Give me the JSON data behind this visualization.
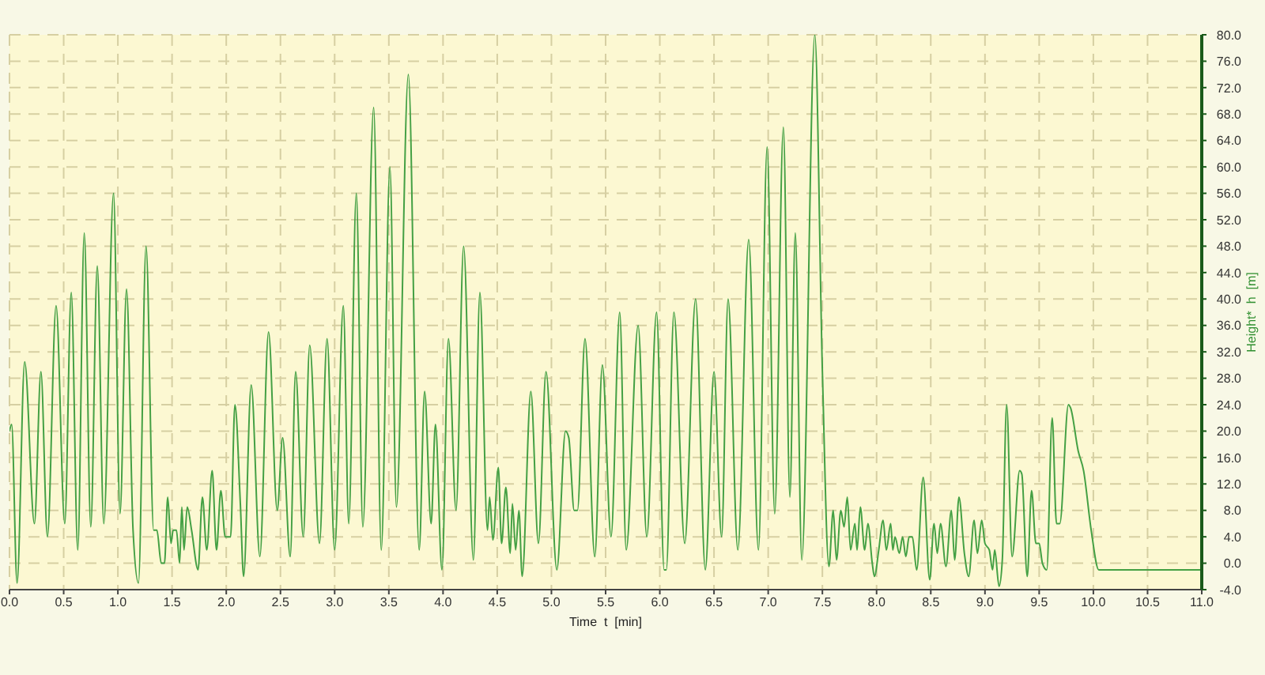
{
  "chart_data": {
    "type": "line",
    "xlabel": "Time  t  [min]",
    "ylabel": "Height*  h  [m]",
    "x": [
      0.0,
      0.02,
      0.07,
      0.14,
      0.23,
      0.29,
      0.35,
      0.43,
      0.51,
      0.57,
      0.63,
      0.69,
      0.75,
      0.81,
      0.87,
      0.96,
      1.02,
      1.08,
      1.14,
      1.19,
      1.26,
      1.33,
      1.36,
      1.4,
      1.43,
      1.46,
      1.49,
      1.51,
      1.54,
      1.57,
      1.59,
      1.61,
      1.64,
      1.68,
      1.74,
      1.78,
      1.82,
      1.87,
      1.91,
      1.95,
      1.99,
      2.04,
      2.08,
      2.13,
      2.16,
      2.23,
      2.31,
      2.39,
      2.47,
      2.52,
      2.59,
      2.64,
      2.71,
      2.77,
      2.86,
      2.93,
      3.0,
      3.08,
      3.13,
      3.2,
      3.26,
      3.36,
      3.43,
      3.51,
      3.57,
      3.68,
      3.78,
      3.83,
      3.89,
      3.93,
      3.99,
      4.05,
      4.12,
      4.19,
      4.28,
      4.34,
      4.41,
      4.43,
      4.46,
      4.51,
      4.54,
      4.58,
      4.62,
      4.64,
      4.67,
      4.7,
      4.73,
      4.81,
      4.88,
      4.95,
      5.05,
      5.13,
      5.16,
      5.21,
      5.24,
      5.31,
      5.4,
      5.47,
      5.55,
      5.63,
      5.69,
      5.8,
      5.88,
      5.97,
      6.04,
      6.06,
      6.13,
      6.23,
      6.33,
      6.42,
      6.5,
      6.57,
      6.63,
      6.72,
      6.82,
      6.91,
      6.99,
      7.06,
      7.14,
      7.2,
      7.25,
      7.31,
      7.43,
      7.5,
      7.56,
      7.6,
      7.63,
      7.67,
      7.7,
      7.73,
      7.76,
      7.8,
      7.82,
      7.85,
      7.89,
      7.92,
      7.96,
      7.98,
      8.02,
      8.06,
      8.09,
      8.13,
      8.15,
      8.17,
      8.21,
      8.24,
      8.27,
      8.3,
      8.33,
      8.37,
      8.43,
      8.49,
      8.53,
      8.56,
      8.59,
      8.64,
      8.69,
      8.72,
      8.76,
      8.81,
      8.85,
      8.9,
      8.93,
      8.97,
      9.0,
      9.04,
      9.07,
      9.09,
      9.13,
      9.16,
      9.2,
      9.25,
      9.32,
      9.34,
      9.39,
      9.43,
      9.47,
      9.5,
      9.53,
      9.57,
      9.62,
      9.66,
      9.69,
      9.77,
      9.79,
      9.86,
      9.91,
      9.98,
      10.05,
      11.0
    ],
    "series": [
      {
        "color": "#44a044",
        "values": [
          20,
          21,
          -3,
          30.5,
          6,
          29,
          4,
          39,
          6,
          41,
          2,
          50,
          5.5,
          45,
          6,
          56,
          7.5,
          41.5,
          5,
          -3,
          48,
          5,
          5,
          0,
          0,
          10,
          3,
          5,
          5,
          0,
          8.5,
          2,
          8.5,
          5,
          -1,
          10,
          2,
          14,
          2,
          11,
          4,
          4,
          24,
          9,
          -2,
          27,
          1,
          35,
          8,
          19,
          1,
          29,
          4,
          33,
          3,
          34,
          2,
          39,
          6,
          56,
          5.5,
          69,
          2,
          60,
          8.5,
          74,
          2,
          26,
          6,
          21,
          -1,
          34,
          8,
          48,
          0.5,
          41,
          5,
          10,
          3.5,
          14.5,
          3,
          11.5,
          1.5,
          9,
          2,
          8,
          -2,
          26,
          3,
          29,
          -1,
          20,
          19,
          8,
          8,
          34,
          1,
          30,
          4,
          38,
          2,
          36,
          4,
          38,
          -1,
          -1,
          38,
          3,
          40,
          -1,
          29,
          4,
          40,
          2,
          49,
          2,
          63,
          7.5,
          66,
          10,
          50,
          0.5,
          80,
          29,
          -0.5,
          8,
          0.5,
          8,
          5.5,
          10,
          2,
          6,
          2,
          8.5,
          2,
          6,
          0,
          -2,
          2,
          6.5,
          2,
          6,
          2,
          4,
          1.5,
          4,
          1,
          4,
          4,
          -1,
          13,
          -2.5,
          6,
          1.5,
          6,
          -0.5,
          8,
          0.5,
          10,
          1.5,
          -2,
          6.5,
          1.5,
          6.5,
          3,
          2,
          -1,
          2,
          -3.5,
          0.5,
          24,
          1,
          14,
          13.5,
          -2,
          11,
          3,
          3,
          0,
          -1,
          22,
          6,
          6,
          24,
          23.5,
          17,
          14,
          5,
          -1,
          -1
        ]
      }
    ],
    "xlim": [
      0,
      11
    ],
    "ylim": [
      -4,
      80
    ],
    "xticks": [
      {
        "value": 0,
        "label": "0.0"
      },
      {
        "value": 0.5,
        "label": "0.5"
      },
      {
        "value": 1,
        "label": "1.0"
      },
      {
        "value": 1.5,
        "label": "1.5"
      },
      {
        "value": 2,
        "label": "2.0"
      },
      {
        "value": 2.5,
        "label": "2.5"
      },
      {
        "value": 3,
        "label": "3.0"
      },
      {
        "value": 3.5,
        "label": "3.5"
      },
      {
        "value": 4,
        "label": "4.0"
      },
      {
        "value": 4.5,
        "label": "4.5"
      },
      {
        "value": 5,
        "label": "5.0"
      },
      {
        "value": 5.5,
        "label": "5.5"
      },
      {
        "value": 6,
        "label": "6.0"
      },
      {
        "value": 6.5,
        "label": "6.5"
      },
      {
        "value": 7,
        "label": "7.0"
      },
      {
        "value": 7.5,
        "label": "7.5"
      },
      {
        "value": 8,
        "label": "8.0"
      },
      {
        "value": 8.5,
        "label": "8.5"
      },
      {
        "value": 9,
        "label": "9.0"
      },
      {
        "value": 9.5,
        "label": "9.5"
      },
      {
        "value": 10,
        "label": "10.0"
      },
      {
        "value": 10.5,
        "label": "10.5"
      },
      {
        "value": 11,
        "label": "11.0"
      }
    ],
    "yticks": [
      {
        "value": -4,
        "label": "-4.0"
      },
      {
        "value": 0,
        "label": "0.0"
      },
      {
        "value": 4,
        "label": "4.0"
      },
      {
        "value": 8,
        "label": "8.0"
      },
      {
        "value": 12,
        "label": "12.0"
      },
      {
        "value": 16,
        "label": "16.0"
      },
      {
        "value": 20,
        "label": "20.0"
      },
      {
        "value": 24,
        "label": "24.0"
      },
      {
        "value": 28,
        "label": "28.0"
      },
      {
        "value": 32,
        "label": "32.0"
      },
      {
        "value": 36,
        "label": "36.0"
      },
      {
        "value": 40,
        "label": "40.0"
      },
      {
        "value": 44,
        "label": "44.0"
      },
      {
        "value": 48,
        "label": "48.0"
      },
      {
        "value": 52,
        "label": "52.0"
      },
      {
        "value": 56,
        "label": "56.0"
      },
      {
        "value": 60,
        "label": "60.0"
      },
      {
        "value": 64,
        "label": "64.0"
      },
      {
        "value": 68,
        "label": "68.0"
      },
      {
        "value": 72,
        "label": "72.0"
      },
      {
        "value": 76,
        "label": "76.0"
      },
      {
        "value": 80,
        "label": "80.0"
      }
    ],
    "grid": true,
    "marker": "none",
    "line_style": "solid"
  }
}
